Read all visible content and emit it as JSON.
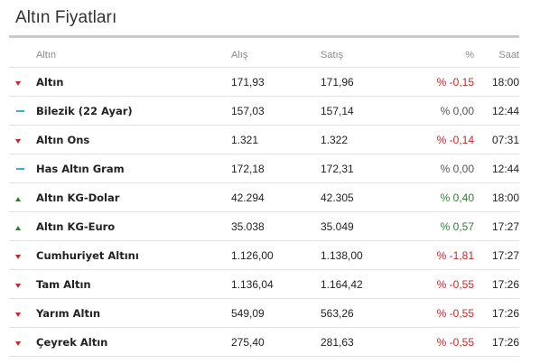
{
  "title": "Altın Fiyatları",
  "headers": {
    "name": "Altın",
    "buy": "Alış",
    "sell": "Satış",
    "pct": "%",
    "time": "Saat"
  },
  "rows": [
    {
      "trend": "down",
      "name": "Altın",
      "buy": "171,93",
      "sell": "171,96",
      "pct": "% -0,15",
      "time": "18:00"
    },
    {
      "trend": "flat",
      "name": "Bilezik (22 Ayar)",
      "buy": "157,03",
      "sell": "157,14",
      "pct": "% 0,00",
      "time": "12:44"
    },
    {
      "trend": "down",
      "name": "Altın Ons",
      "buy": "1.321",
      "sell": "1.322",
      "pct": "% -0,14",
      "time": "07:31"
    },
    {
      "trend": "flat",
      "name": "Has Altın Gram",
      "buy": "172,18",
      "sell": "172,31",
      "pct": "% 0,00",
      "time": "12:44"
    },
    {
      "trend": "up",
      "name": "Altın KG-Dolar",
      "buy": "42.294",
      "sell": "42.305",
      "pct": "% 0,40",
      "time": "18:00"
    },
    {
      "trend": "up",
      "name": "Altın KG-Euro",
      "buy": "35.038",
      "sell": "35.049",
      "pct": "% 0,57",
      "time": "17:27"
    },
    {
      "trend": "down",
      "name": "Cumhuriyet Altını",
      "buy": "1.126,00",
      "sell": "1.138,00",
      "pct": "% -1,81",
      "time": "17:27"
    },
    {
      "trend": "down",
      "name": "Tam Altın",
      "buy": "1.136,04",
      "sell": "1.164,42",
      "pct": "% -0,55",
      "time": "17:26"
    },
    {
      "trend": "down",
      "name": "Yarım Altın",
      "buy": "549,09",
      "sell": "563,26",
      "pct": "% -0,55",
      "time": "17:26"
    },
    {
      "trend": "down",
      "name": "Çeyrek Altın",
      "buy": "275,40",
      "sell": "281,63",
      "pct": "% -0,55",
      "time": "17:26"
    }
  ],
  "colors": {
    "down": "#c62828",
    "up": "#2e7d32",
    "flat": "#4aa6c9"
  },
  "icons": {
    "down": "caret-down-icon",
    "up": "caret-up-icon",
    "flat": "dash-icon"
  }
}
